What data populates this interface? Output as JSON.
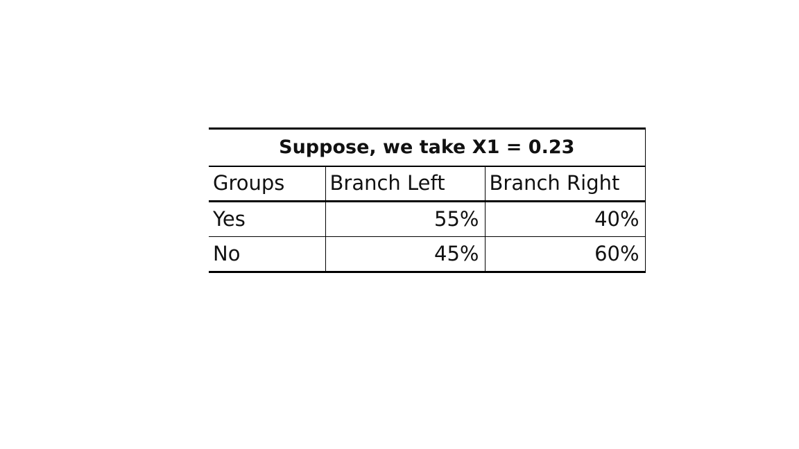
{
  "table": {
    "title": "Suppose, we take X1 = 0.23",
    "headers": [
      "Groups",
      "Branch Left",
      "Branch Right"
    ],
    "rows": [
      [
        "Yes",
        "55%",
        "40%"
      ],
      [
        "No",
        "45%",
        "60%"
      ]
    ]
  }
}
